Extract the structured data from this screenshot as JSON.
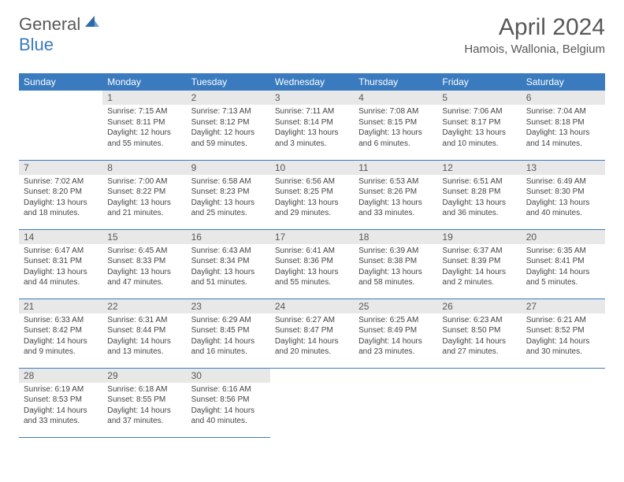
{
  "logo": {
    "general": "General",
    "blue": "Blue"
  },
  "header": {
    "title": "April 2024",
    "location": "Hamois, Wallonia, Belgium"
  },
  "colors": {
    "accent": "#3a7bbf",
    "header_text": "#585858",
    "cell_header_bg": "#e8e8e8",
    "body_text": "#444444"
  },
  "dayNames": [
    "Sunday",
    "Monday",
    "Tuesday",
    "Wednesday",
    "Thursday",
    "Friday",
    "Saturday"
  ],
  "weeks": [
    [
      {
        "n": "",
        "rise": "",
        "set": "",
        "day": "",
        "empty": true
      },
      {
        "n": "1",
        "rise": "Sunrise: 7:15 AM",
        "set": "Sunset: 8:11 PM",
        "day": "Daylight: 12 hours and 55 minutes."
      },
      {
        "n": "2",
        "rise": "Sunrise: 7:13 AM",
        "set": "Sunset: 8:12 PM",
        "day": "Daylight: 12 hours and 59 minutes."
      },
      {
        "n": "3",
        "rise": "Sunrise: 7:11 AM",
        "set": "Sunset: 8:14 PM",
        "day": "Daylight: 13 hours and 3 minutes."
      },
      {
        "n": "4",
        "rise": "Sunrise: 7:08 AM",
        "set": "Sunset: 8:15 PM",
        "day": "Daylight: 13 hours and 6 minutes."
      },
      {
        "n": "5",
        "rise": "Sunrise: 7:06 AM",
        "set": "Sunset: 8:17 PM",
        "day": "Daylight: 13 hours and 10 minutes."
      },
      {
        "n": "6",
        "rise": "Sunrise: 7:04 AM",
        "set": "Sunset: 8:18 PM",
        "day": "Daylight: 13 hours and 14 minutes."
      }
    ],
    [
      {
        "n": "7",
        "rise": "Sunrise: 7:02 AM",
        "set": "Sunset: 8:20 PM",
        "day": "Daylight: 13 hours and 18 minutes."
      },
      {
        "n": "8",
        "rise": "Sunrise: 7:00 AM",
        "set": "Sunset: 8:22 PM",
        "day": "Daylight: 13 hours and 21 minutes."
      },
      {
        "n": "9",
        "rise": "Sunrise: 6:58 AM",
        "set": "Sunset: 8:23 PM",
        "day": "Daylight: 13 hours and 25 minutes."
      },
      {
        "n": "10",
        "rise": "Sunrise: 6:56 AM",
        "set": "Sunset: 8:25 PM",
        "day": "Daylight: 13 hours and 29 minutes."
      },
      {
        "n": "11",
        "rise": "Sunrise: 6:53 AM",
        "set": "Sunset: 8:26 PM",
        "day": "Daylight: 13 hours and 33 minutes."
      },
      {
        "n": "12",
        "rise": "Sunrise: 6:51 AM",
        "set": "Sunset: 8:28 PM",
        "day": "Daylight: 13 hours and 36 minutes."
      },
      {
        "n": "13",
        "rise": "Sunrise: 6:49 AM",
        "set": "Sunset: 8:30 PM",
        "day": "Daylight: 13 hours and 40 minutes."
      }
    ],
    [
      {
        "n": "14",
        "rise": "Sunrise: 6:47 AM",
        "set": "Sunset: 8:31 PM",
        "day": "Daylight: 13 hours and 44 minutes."
      },
      {
        "n": "15",
        "rise": "Sunrise: 6:45 AM",
        "set": "Sunset: 8:33 PM",
        "day": "Daylight: 13 hours and 47 minutes."
      },
      {
        "n": "16",
        "rise": "Sunrise: 6:43 AM",
        "set": "Sunset: 8:34 PM",
        "day": "Daylight: 13 hours and 51 minutes."
      },
      {
        "n": "17",
        "rise": "Sunrise: 6:41 AM",
        "set": "Sunset: 8:36 PM",
        "day": "Daylight: 13 hours and 55 minutes."
      },
      {
        "n": "18",
        "rise": "Sunrise: 6:39 AM",
        "set": "Sunset: 8:38 PM",
        "day": "Daylight: 13 hours and 58 minutes."
      },
      {
        "n": "19",
        "rise": "Sunrise: 6:37 AM",
        "set": "Sunset: 8:39 PM",
        "day": "Daylight: 14 hours and 2 minutes."
      },
      {
        "n": "20",
        "rise": "Sunrise: 6:35 AM",
        "set": "Sunset: 8:41 PM",
        "day": "Daylight: 14 hours and 5 minutes."
      }
    ],
    [
      {
        "n": "21",
        "rise": "Sunrise: 6:33 AM",
        "set": "Sunset: 8:42 PM",
        "day": "Daylight: 14 hours and 9 minutes."
      },
      {
        "n": "22",
        "rise": "Sunrise: 6:31 AM",
        "set": "Sunset: 8:44 PM",
        "day": "Daylight: 14 hours and 13 minutes."
      },
      {
        "n": "23",
        "rise": "Sunrise: 6:29 AM",
        "set": "Sunset: 8:45 PM",
        "day": "Daylight: 14 hours and 16 minutes."
      },
      {
        "n": "24",
        "rise": "Sunrise: 6:27 AM",
        "set": "Sunset: 8:47 PM",
        "day": "Daylight: 14 hours and 20 minutes."
      },
      {
        "n": "25",
        "rise": "Sunrise: 6:25 AM",
        "set": "Sunset: 8:49 PM",
        "day": "Daylight: 14 hours and 23 minutes."
      },
      {
        "n": "26",
        "rise": "Sunrise: 6:23 AM",
        "set": "Sunset: 8:50 PM",
        "day": "Daylight: 14 hours and 27 minutes."
      },
      {
        "n": "27",
        "rise": "Sunrise: 6:21 AM",
        "set": "Sunset: 8:52 PM",
        "day": "Daylight: 14 hours and 30 minutes."
      }
    ],
    [
      {
        "n": "28",
        "rise": "Sunrise: 6:19 AM",
        "set": "Sunset: 8:53 PM",
        "day": "Daylight: 14 hours and 33 minutes."
      },
      {
        "n": "29",
        "rise": "Sunrise: 6:18 AM",
        "set": "Sunset: 8:55 PM",
        "day": "Daylight: 14 hours and 37 minutes."
      },
      {
        "n": "30",
        "rise": "Sunrise: 6:16 AM",
        "set": "Sunset: 8:56 PM",
        "day": "Daylight: 14 hours and 40 minutes."
      },
      {
        "n": "",
        "rise": "",
        "set": "",
        "day": "",
        "empty": true
      },
      {
        "n": "",
        "rise": "",
        "set": "",
        "day": "",
        "empty": true
      },
      {
        "n": "",
        "rise": "",
        "set": "",
        "day": "",
        "empty": true
      },
      {
        "n": "",
        "rise": "",
        "set": "",
        "day": "",
        "empty": true
      }
    ]
  ]
}
